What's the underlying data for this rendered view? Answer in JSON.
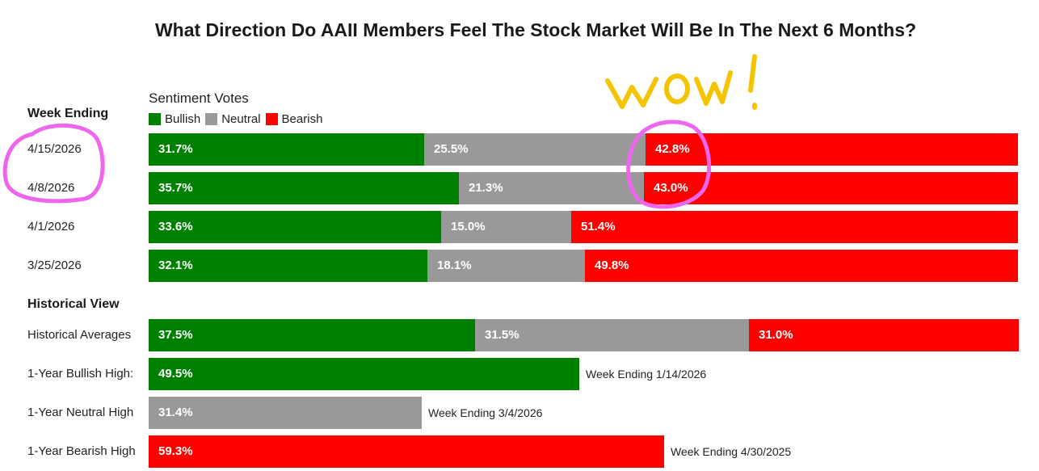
{
  "title": "What Direction Do AAII Members Feel The Stock Market Will Be In The Next 6 Months?",
  "legend": {
    "title": "Sentiment Votes",
    "items": [
      {
        "label": "Bullish",
        "color": "#008000"
      },
      {
        "label": "Neutral",
        "color": "#999999"
      },
      {
        "label": "Bearish",
        "color": "#ff0000"
      }
    ]
  },
  "sections": {
    "week_ending": "Week Ending",
    "historical_view": "Historical View"
  },
  "annotation": {
    "text": "wow !",
    "color_text": "#f5c400",
    "color_circle": "#ee66ee"
  },
  "chart_data": {
    "type": "bar",
    "orientation": "horizontal",
    "stacked": true,
    "xlim": [
      0,
      100
    ],
    "unit": "%",
    "series_names": [
      "Bullish",
      "Neutral",
      "Bearish"
    ],
    "rows": [
      {
        "label": "4/15/2026",
        "group": "weekly",
        "values": {
          "Bullish": 31.7,
          "Neutral": 25.5,
          "Bearish": 42.8
        },
        "labels": {
          "Bullish": "31.7%",
          "Neutral": "25.5%",
          "Bearish": "42.8%"
        }
      },
      {
        "label": "4/8/2026",
        "group": "weekly",
        "values": {
          "Bullish": 35.7,
          "Neutral": 21.3,
          "Bearish": 43.0
        },
        "labels": {
          "Bullish": "35.7%",
          "Neutral": "21.3%",
          "Bearish": "43.0%"
        }
      },
      {
        "label": "4/1/2026",
        "group": "weekly",
        "values": {
          "Bullish": 33.6,
          "Neutral": 15.0,
          "Bearish": 51.4
        },
        "labels": {
          "Bullish": "33.6%",
          "Neutral": "15.0%",
          "Bearish": "51.4%"
        }
      },
      {
        "label": "3/25/2026",
        "group": "weekly",
        "values": {
          "Bullish": 32.1,
          "Neutral": 18.1,
          "Bearish": 49.8
        },
        "labels": {
          "Bullish": "32.1%",
          "Neutral": "18.1%",
          "Bearish": "49.8%"
        }
      },
      {
        "label": "Historical Averages",
        "group": "historical",
        "values": {
          "Bullish": 37.5,
          "Neutral": 31.5,
          "Bearish": 31.0
        },
        "labels": {
          "Bullish": "37.5%",
          "Neutral": "31.5%",
          "Bearish": "31.0%"
        }
      },
      {
        "label": "1-Year Bullish High:",
        "group": "historical",
        "values": {
          "Bullish": 49.5
        },
        "labels": {
          "Bullish": "49.5%"
        },
        "note": "Week Ending 1/14/2026"
      },
      {
        "label": "1-Year Neutral High",
        "group": "historical",
        "values": {
          "Neutral": 31.4
        },
        "labels": {
          "Neutral": "31.4%"
        },
        "note": "Week Ending 3/4/2026"
      },
      {
        "label": "1-Year Bearish High",
        "group": "historical",
        "values": {
          "Bearish": 59.3
        },
        "labels": {
          "Bearish": "59.3%"
        },
        "note": "Week Ending 4/30/2025"
      }
    ]
  }
}
